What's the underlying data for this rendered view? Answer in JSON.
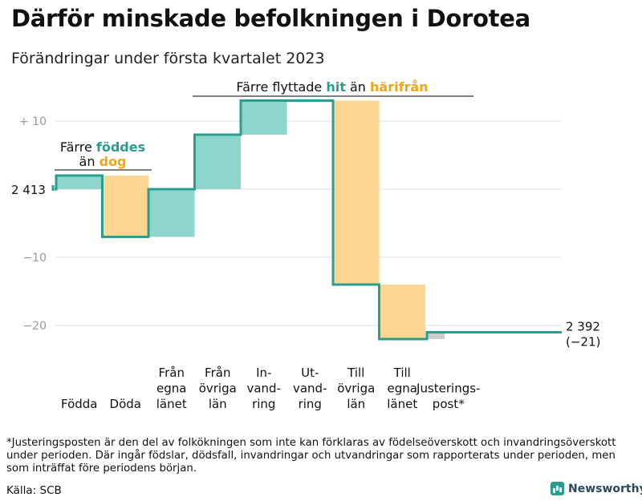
{
  "title": "Därför minskade befolkningen i Dorotea",
  "subtitle": "Förändringar under första kvartalet 2023",
  "colors": {
    "teal": "#2a9d8f",
    "increase_fill": "#8ed6cb",
    "decrease_fill": "#fcd793",
    "orange_text": "#f0a51a",
    "adjustment_fill": "#cccccc",
    "grid": "#dddddd"
  },
  "chart_data": {
    "type": "waterfall",
    "start_value": 2413,
    "end_value": 2392,
    "net_change": -21,
    "start_label": "2 413",
    "end_label": "2 392",
    "end_change_label": "(−21)",
    "y_ticks": [
      {
        "value": 10,
        "label": "+ 10"
      },
      {
        "value": -10,
        "label": "−10"
      },
      {
        "value": -20,
        "label": "−20"
      }
    ],
    "ylim": [
      -25,
      12
    ],
    "steps": [
      {
        "label": [
          "Födda"
        ],
        "change": 2,
        "kind": "increase"
      },
      {
        "label": [
          "Döda"
        ],
        "change": -9,
        "kind": "decrease"
      },
      {
        "label": [
          "Från",
          "egna",
          "länet"
        ],
        "change": 7,
        "kind": "increase"
      },
      {
        "label": [
          "Från",
          "övriga",
          "län"
        ],
        "change": 8,
        "kind": "increase"
      },
      {
        "label": [
          "In-",
          "vand-",
          "ring"
        ],
        "change": 5,
        "kind": "increase"
      },
      {
        "label": [
          "Ut-",
          "vand-",
          "ring"
        ],
        "change": 0,
        "kind": "none"
      },
      {
        "label": [
          "Till",
          "övriga",
          "län"
        ],
        "change": -27,
        "kind": "decrease"
      },
      {
        "label": [
          "Till",
          "egna",
          "länet"
        ],
        "change": -8,
        "kind": "decrease"
      },
      {
        "label": [
          "Justerings-",
          "post*"
        ],
        "change": 1,
        "kind": "adjustment"
      }
    ],
    "annotations": [
      {
        "id": "births",
        "parts": [
          {
            "line": 0,
            "text": "Färre ",
            "style": "plain"
          },
          {
            "line": 0,
            "text": "föddes",
            "style": "teal"
          },
          {
            "line": 1,
            "text": "än ",
            "style": "plain"
          },
          {
            "line": 1,
            "text": "dog",
            "style": "orange"
          }
        ]
      },
      {
        "id": "migration",
        "parts": [
          {
            "line": 0,
            "text": "Färre flyttade ",
            "style": "plain"
          },
          {
            "line": 0,
            "text": "hit",
            "style": "teal"
          },
          {
            "line": 0,
            "text": " än ",
            "style": "plain"
          },
          {
            "line": 0,
            "text": "härifrån",
            "style": "orange"
          }
        ]
      }
    ]
  },
  "footnote": "*Justeringsposten är den del av folkökningen som inte kan förklaras av födelseöverskott och invandringsöverskott under perioden. Där ingår födslar, dödsfall, invandringar och utvandringar som rapporterats under perioden, men som inträffat före periodens början.",
  "source": "Källa: SCB",
  "brand": {
    "name": "Newsworthy",
    "icon": "bar-chart-icon"
  }
}
